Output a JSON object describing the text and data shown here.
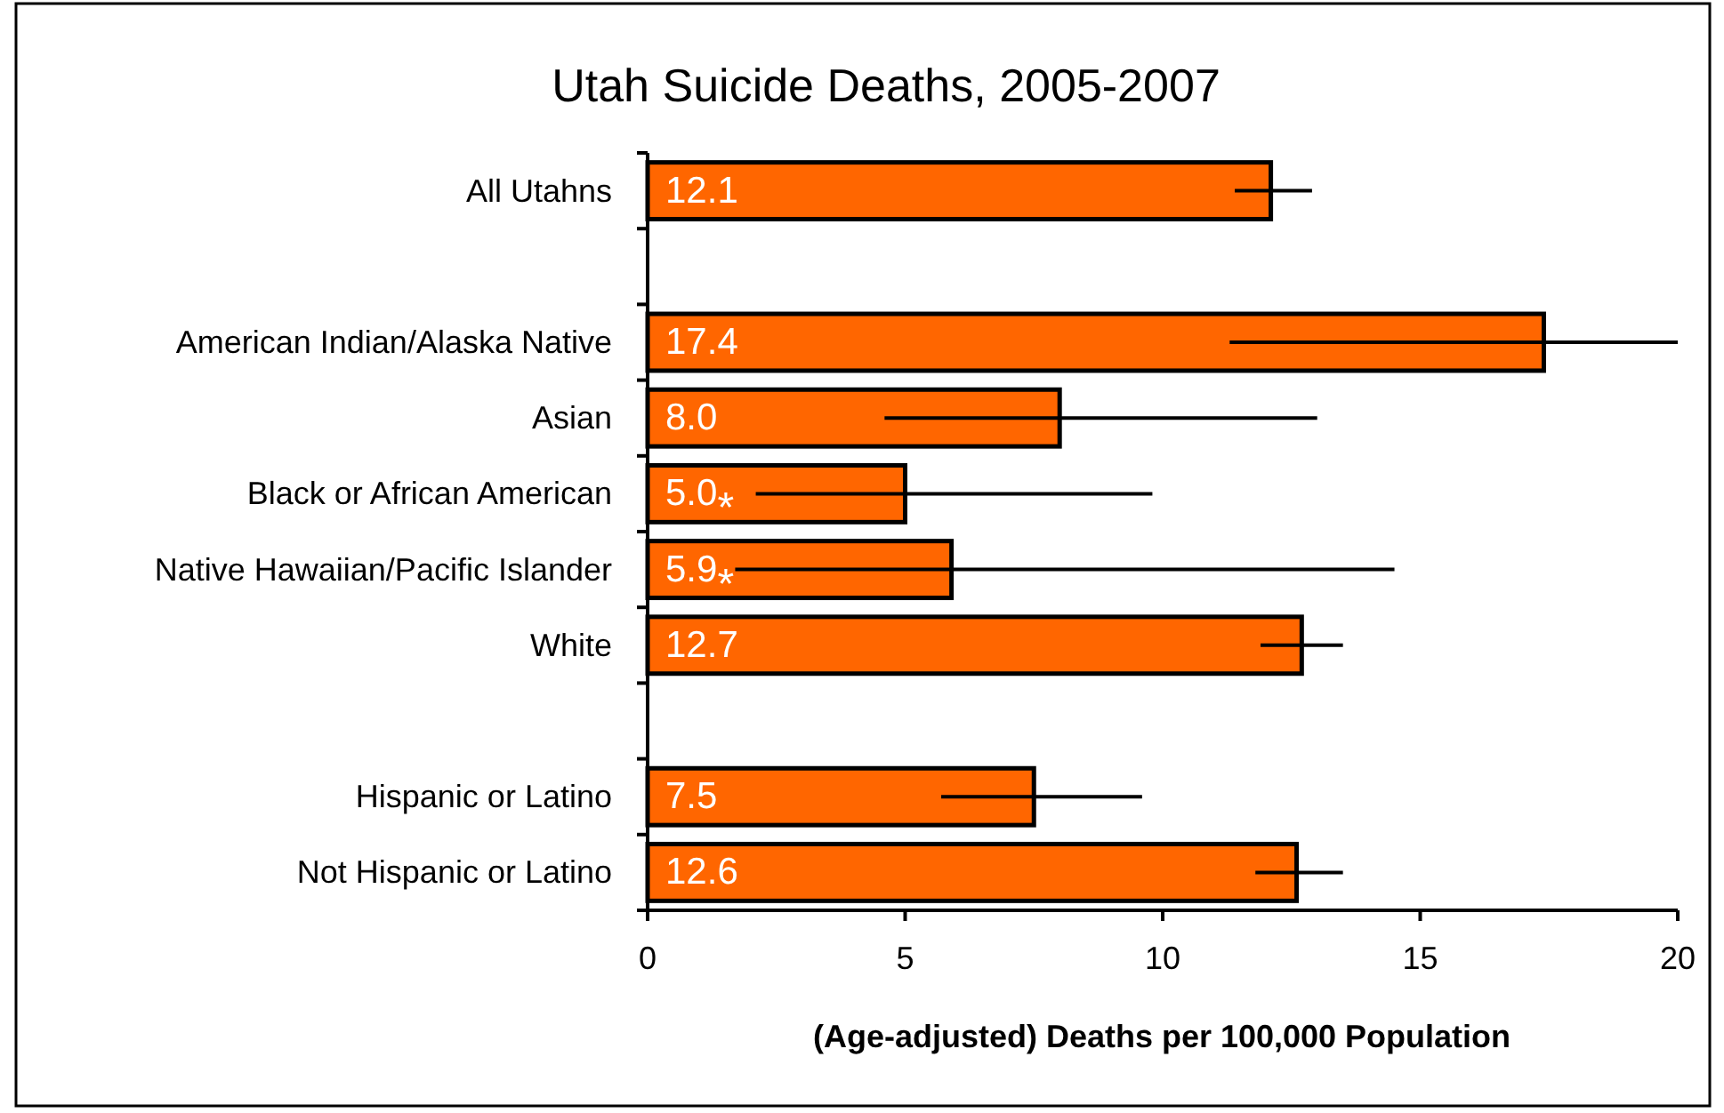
{
  "chart_data": {
    "type": "bar",
    "orientation": "horizontal",
    "title": "Utah Suicide Deaths, 2005-2007",
    "xlabel": "(Age-adjusted) Deaths per 100,000 Population",
    "categories": [
      "All Utahns",
      null,
      "American Indian/Alaska Native",
      "Asian",
      "Black or African American",
      "Native Hawaiian/Pacific Islander",
      "White",
      null,
      "Hispanic or Latino",
      "Not Hispanic or Latino"
    ],
    "values": [
      12.1,
      null,
      17.4,
      8.0,
      5.0,
      5.9,
      12.7,
      null,
      7.5,
      12.6
    ],
    "errors": [
      [
        11.4,
        12.9
      ],
      null,
      [
        11.3,
        20.0
      ],
      [
        4.6,
        13.0
      ],
      [
        2.1,
        9.8
      ],
      [
        1.7,
        14.5
      ],
      [
        11.9,
        13.5
      ],
      null,
      [
        5.7,
        9.6
      ],
      [
        11.8,
        13.5
      ]
    ],
    "value_labels": [
      "12.1",
      null,
      "17.4",
      "8.0",
      "5.0*",
      "5.9*",
      "12.7",
      null,
      "7.5",
      "12.6"
    ],
    "color": "#ff6600",
    "xlim": [
      0,
      20
    ],
    "xticks": [
      0,
      5,
      10,
      15,
      20
    ],
    "grid": false
  }
}
